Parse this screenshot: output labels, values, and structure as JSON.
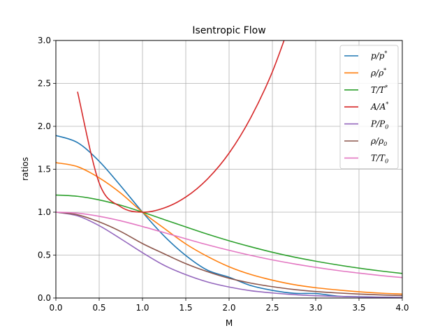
{
  "chart_data": {
    "type": "line",
    "title": "Isentropic Flow",
    "xlabel": "M",
    "ylabel": "ratios",
    "xlim": [
      0.0,
      4.0
    ],
    "ylim": [
      0.0,
      3.0
    ],
    "x_ticks": [
      "0.0",
      "0.5",
      "1.0",
      "1.5",
      "2.0",
      "2.5",
      "3.0",
      "3.5",
      "4.0"
    ],
    "y_ticks": [
      "0.0",
      "0.5",
      "1.0",
      "1.5",
      "2.0",
      "2.5",
      "3.0"
    ],
    "grid": true,
    "legend_position": "top-right",
    "x": [
      0.0,
      0.25,
      0.5,
      0.75,
      1.0,
      1.25,
      1.5,
      1.75,
      2.0,
      2.25,
      2.5,
      2.75,
      3.0,
      3.25,
      3.5,
      3.75,
      4.0
    ],
    "series": [
      {
        "name": "p/p*",
        "label_base": "p/p",
        "label_sup": "*",
        "label_sub": "",
        "color": "#1f77b4",
        "values": [
          1.893,
          1.81,
          1.593,
          1.304,
          1.0,
          0.722,
          0.495,
          0.324,
          0.242,
          0.145,
          0.089,
          0.055,
          0.052,
          0.022,
          0.015,
          0.01,
          0.006
        ]
      },
      {
        "name": "ρ/ρ*",
        "label_base": "ρ/ρ",
        "label_sup": "*",
        "label_sub": "",
        "color": "#ff7f0e",
        "values": [
          1.577,
          1.53,
          1.4,
          1.221,
          1.0,
          0.812,
          0.63,
          0.484,
          0.364,
          0.274,
          0.208,
          0.156,
          0.12,
          0.094,
          0.073,
          0.057,
          0.046
        ]
      },
      {
        "name": "T/T*",
        "label_base": "T/T",
        "label_sup": "*",
        "label_sub": "",
        "color": "#2ca02c",
        "values": [
          1.2,
          1.185,
          1.143,
          1.08,
          1.0,
          0.914,
          0.828,
          0.744,
          0.667,
          0.597,
          0.533,
          0.477,
          0.429,
          0.386,
          0.348,
          0.315,
          0.286
        ]
      },
      {
        "name": "A/A*",
        "label_base": "A/A",
        "label_sup": "*",
        "label_sub": "",
        "color": "#d62728",
        "values": [
          null,
          2.403,
          1.34,
          1.062,
          1.0,
          1.049,
          1.176,
          1.386,
          1.688,
          2.101,
          2.636,
          3.33,
          null,
          null,
          null,
          null,
          null
        ]
      },
      {
        "name": "P/P0",
        "label_base": "P/P",
        "label_sup": "",
        "label_sub": "0",
        "color": "#9467bd",
        "values": [
          1.0,
          0.957,
          0.843,
          0.689,
          0.528,
          0.381,
          0.272,
          0.187,
          0.128,
          0.085,
          0.059,
          0.039,
          0.027,
          0.019,
          0.013,
          0.009,
          0.007
        ]
      },
      {
        "name": "ρ/ρ0",
        "label_base": "ρ/ρ",
        "label_sup": "",
        "label_sub": "0",
        "color": "#8c564b",
        "values": [
          1.0,
          0.969,
          0.887,
          0.774,
          0.634,
          0.515,
          0.4,
          0.307,
          0.23,
          0.174,
          0.132,
          0.099,
          0.076,
          0.059,
          0.046,
          0.036,
          0.029
        ]
      },
      {
        "name": "T/T0",
        "label_base": "T/T",
        "label_sup": "",
        "label_sub": "0",
        "color": "#e377c2",
        "values": [
          1.0,
          0.988,
          0.952,
          0.899,
          0.833,
          0.762,
          0.69,
          0.62,
          0.556,
          0.497,
          0.444,
          0.398,
          0.357,
          0.321,
          0.29,
          0.262,
          0.238
        ]
      }
    ]
  }
}
